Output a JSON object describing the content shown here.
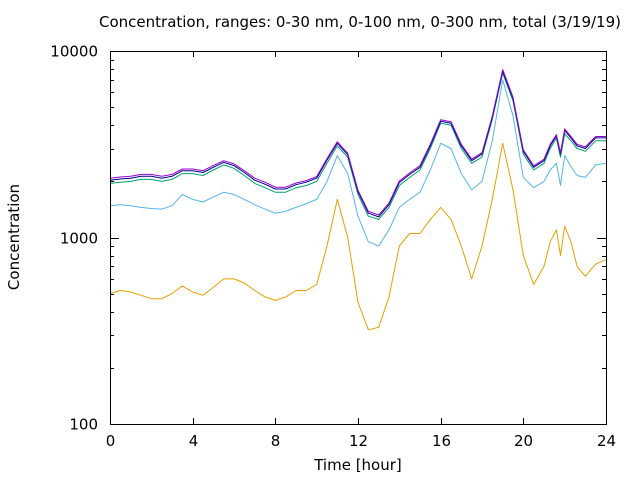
{
  "chart_data": {
    "type": "line",
    "title": "Concentration, ranges: 0-30 nm, 0-100 nm, 0-300 nm, total (3/19/19)",
    "xlabel": "Time [hour]",
    "ylabel": "Concentration",
    "xlim": [
      0,
      24
    ],
    "ylim": [
      100,
      10000
    ],
    "yscale": "log",
    "xticks": [
      "0",
      "4",
      "8",
      "12",
      "16",
      "20",
      "24"
    ],
    "yticks": [
      "100",
      "1000",
      "10000"
    ],
    "grid": false,
    "legend": "none",
    "series": [
      {
        "color": "#e69f00",
        "x": [
          0,
          0.5,
          1,
          1.5,
          2,
          2.5,
          3,
          3.5,
          4,
          4.5,
          5,
          5.5,
          6,
          6.5,
          7,
          7.5,
          8,
          8.5,
          9,
          9.5,
          10,
          10.5,
          11,
          11.5,
          12,
          12.5,
          13,
          13.5,
          14,
          14.5,
          15,
          15.5,
          16,
          16.5,
          17,
          17.5,
          18,
          18.5,
          19,
          19.5,
          20,
          20.5,
          21,
          21.3,
          21.6,
          21.8,
          22,
          22.3,
          22.6,
          23,
          23.5,
          24
        ],
        "values": [
          500,
          520,
          510,
          490,
          470,
          470,
          500,
          550,
          510,
          490,
          540,
          600,
          600,
          570,
          520,
          480,
          460,
          480,
          520,
          520,
          560,
          900,
          1600,
          1000,
          450,
          320,
          330,
          480,
          900,
          1050,
          1050,
          1250,
          1450,
          1250,
          900,
          600,
          900,
          1600,
          3200,
          1800,
          800,
          560,
          700,
          950,
          1100,
          800,
          1150,
          950,
          700,
          620,
          720,
          760
        ]
      },
      {
        "color": "#56b4e9",
        "x": [
          0,
          0.5,
          1,
          1.5,
          2,
          2.5,
          3,
          3.5,
          4,
          4.5,
          5,
          5.5,
          6,
          6.5,
          7,
          7.5,
          8,
          8.5,
          9,
          9.5,
          10,
          10.5,
          11,
          11.5,
          12,
          12.5,
          13,
          13.5,
          14,
          14.5,
          15,
          15.5,
          16,
          16.5,
          17,
          17.5,
          18,
          18.5,
          19,
          19.5,
          20,
          20.5,
          21,
          21.3,
          21.6,
          21.8,
          22,
          22.3,
          22.6,
          23,
          23.5,
          24
        ],
        "values": [
          1480,
          1500,
          1480,
          1450,
          1430,
          1420,
          1480,
          1700,
          1600,
          1550,
          1650,
          1750,
          1700,
          1600,
          1500,
          1420,
          1350,
          1380,
          1450,
          1520,
          1600,
          2000,
          2750,
          2200,
          1300,
          950,
          900,
          1100,
          1450,
          1600,
          1750,
          2300,
          3200,
          3000,
          2200,
          1800,
          2000,
          3300,
          7000,
          4500,
          2100,
          1850,
          2000,
          2300,
          2500,
          1900,
          2750,
          2400,
          2150,
          2100,
          2450,
          2500
        ]
      },
      {
        "color": "#009e73",
        "x": [
          0,
          0.5,
          1,
          1.5,
          2,
          2.5,
          3,
          3.5,
          4,
          4.5,
          5,
          5.5,
          6,
          6.5,
          7,
          7.5,
          8,
          8.5,
          9,
          9.5,
          10,
          10.5,
          11,
          11.5,
          12,
          12.5,
          13,
          13.5,
          14,
          14.5,
          15,
          15.5,
          16,
          16.5,
          17,
          17.5,
          18,
          18.5,
          19,
          19.5,
          20,
          20.5,
          21,
          21.3,
          21.6,
          21.8,
          22,
          22.3,
          22.6,
          23,
          23.5,
          24
        ],
        "values": [
          1950,
          1980,
          2000,
          2050,
          2050,
          2000,
          2050,
          2200,
          2200,
          2150,
          2300,
          2450,
          2350,
          2150,
          1950,
          1850,
          1750,
          1750,
          1850,
          1900,
          2000,
          2500,
          3100,
          2700,
          1700,
          1300,
          1250,
          1450,
          1900,
          2100,
          2300,
          3000,
          4100,
          4000,
          3000,
          2500,
          2700,
          4300,
          7600,
          5400,
          2800,
          2300,
          2500,
          3000,
          3400,
          2700,
          3600,
          3300,
          3000,
          2900,
          3300,
          3300
        ]
      },
      {
        "color": "#00008b",
        "x": [
          0,
          0.5,
          1,
          1.5,
          2,
          2.5,
          3,
          3.5,
          4,
          4.5,
          5,
          5.5,
          6,
          6.5,
          7,
          7.5,
          8,
          8.5,
          9,
          9.5,
          10,
          10.5,
          11,
          11.5,
          12,
          12.5,
          13,
          13.5,
          14,
          14.5,
          15,
          15.5,
          16,
          16.5,
          17,
          17.5,
          18,
          18.5,
          19,
          19.5,
          20,
          20.5,
          21,
          21.3,
          21.6,
          21.8,
          22,
          22.3,
          22.6,
          23,
          23.5,
          24
        ],
        "values": [
          2030,
          2060,
          2080,
          2130,
          2130,
          2080,
          2130,
          2280,
          2280,
          2230,
          2380,
          2530,
          2430,
          2230,
          2030,
          1930,
          1820,
          1820,
          1920,
          1980,
          2080,
          2600,
          3200,
          2780,
          1760,
          1350,
          1290,
          1500,
          1970,
          2180,
          2380,
          3100,
          4200,
          4100,
          3100,
          2580,
          2800,
          4400,
          7800,
          5550,
          2900,
          2380,
          2580,
          3100,
          3500,
          2800,
          3750,
          3420,
          3100,
          3000,
          3420,
          3420
        ]
      },
      {
        "color": "#9400d3",
        "x": [
          0,
          0.5,
          1,
          1.5,
          2,
          2.5,
          3,
          3.5,
          4,
          4.5,
          5,
          5.5,
          6,
          6.5,
          7,
          7.5,
          8,
          8.5,
          9,
          9.5,
          10,
          10.5,
          11,
          11.5,
          12,
          12.5,
          13,
          13.5,
          14,
          14.5,
          15,
          15.5,
          16,
          16.5,
          17,
          17.5,
          18,
          18.5,
          19,
          19.5,
          20,
          20.5,
          21,
          21.3,
          21.6,
          21.8,
          22,
          22.3,
          22.6,
          23,
          23.5,
          24
        ],
        "values": [
          2080,
          2110,
          2130,
          2180,
          2180,
          2130,
          2180,
          2330,
          2330,
          2280,
          2430,
          2580,
          2480,
          2280,
          2080,
          1980,
          1860,
          1860,
          1960,
          2020,
          2120,
          2650,
          3260,
          2830,
          1790,
          1380,
          1320,
          1530,
          2010,
          2220,
          2430,
          3160,
          4280,
          4180,
          3160,
          2630,
          2850,
          4480,
          7950,
          5650,
          2950,
          2420,
          2630,
          3160,
          3560,
          2850,
          3820,
          3480,
          3160,
          3060,
          3480,
          3480
        ]
      }
    ]
  }
}
